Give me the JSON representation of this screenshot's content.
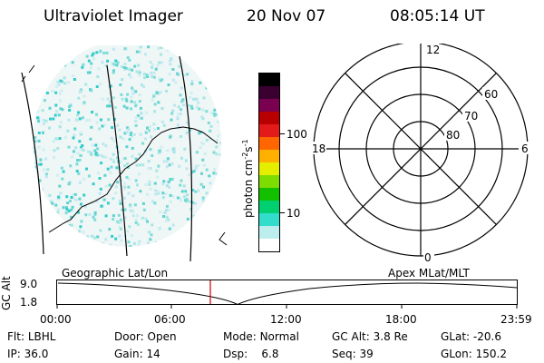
{
  "header": {
    "title": "Ultraviolet Imager",
    "date": "20 Nov 07",
    "time": "08:05:14 UT"
  },
  "colorbar": {
    "label": "photon cm",
    "label_exp1": "-2",
    "label_s": "s",
    "label_exp2": "-1",
    "ticks": [
      "100",
      "10"
    ],
    "colors": [
      "#000000",
      "#3a0030",
      "#7a0050",
      "#b80000",
      "#e21a1a",
      "#ff6600",
      "#ffb000",
      "#e6ee00",
      "#7ddc00",
      "#12c000",
      "#00d070",
      "#33ddcc",
      "#bdeeee",
      "#ffffff"
    ]
  },
  "polar_plot": {
    "mlt_labels": {
      "top": "12",
      "left": "18",
      "right": "6",
      "bottom": "0"
    },
    "lat_labels": [
      "60",
      "70",
      "80"
    ]
  },
  "timeline": {
    "left_label": "Geographic Lat/Lon",
    "right_label": "Apex  MLat/MLT",
    "axis_label": "GC Alt",
    "y_ticks": [
      "9.0",
      "1.8"
    ],
    "x_ticks": [
      "00:00",
      "06:00",
      "12:00",
      "18:00",
      "23:59"
    ],
    "marker_color": "#cc0000"
  },
  "status": {
    "row1": [
      {
        "key": "Flt:",
        "val": "LBHL"
      },
      {
        "key": "Door:",
        "val": "Open"
      },
      {
        "key": "Mode:",
        "val": "Normal"
      },
      {
        "key": "GC Alt:",
        "val": "3.8 Re"
      },
      {
        "key": "GLat:",
        "val": "-20.6"
      }
    ],
    "row2": [
      {
        "key": "IP:",
        "val": "36.0"
      },
      {
        "key": "Gain:",
        "val": "14"
      },
      {
        "key": "Dsp:",
        "val": "6.8"
      },
      {
        "key": "Seq:",
        "val": "39"
      },
      {
        "key": "GLon:",
        "val": "150.2"
      }
    ]
  }
}
